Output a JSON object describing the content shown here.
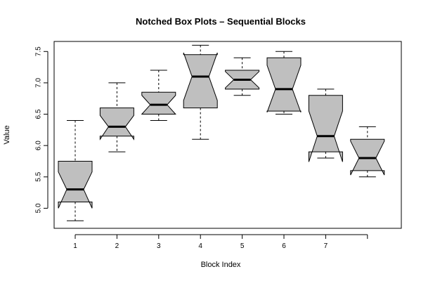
{
  "chart_data": {
    "type": "boxplot",
    "title": "Notched Box Plots – Sequential Blocks",
    "xlabel": "Block Index",
    "ylabel": "Value",
    "ylim": [
      4.68,
      7.66
    ],
    "yticks": [
      5.0,
      5.5,
      6.0,
      6.5,
      7.0,
      7.5
    ],
    "yticklabels": [
      "5.0",
      "5.5",
      "6.0",
      "6.5",
      "7.0",
      "7.5"
    ],
    "categories": [
      "1",
      "2",
      "3",
      "4",
      "5",
      "6",
      "7",
      ""
    ],
    "box_fill": "#bfbfbf",
    "boxes": [
      {
        "min": 4.8,
        "q1": 5.1,
        "median": 5.3,
        "q3": 5.75,
        "max": 6.4,
        "notch_low": 5.0,
        "notch_high": 5.58
      },
      {
        "min": 5.9,
        "q1": 6.15,
        "median": 6.3,
        "q3": 6.6,
        "max": 7.0,
        "notch_low": 6.1,
        "notch_high": 6.48
      },
      {
        "min": 6.4,
        "q1": 6.5,
        "median": 6.65,
        "q3": 6.85,
        "max": 7.2,
        "notch_low": 6.5,
        "notch_high": 6.8
      },
      {
        "min": 6.1,
        "q1": 6.6,
        "median": 7.1,
        "q3": 7.45,
        "max": 7.6,
        "notch_low": 6.72,
        "notch_high": 7.48
      },
      {
        "min": 6.8,
        "q1": 6.9,
        "median": 7.05,
        "q3": 7.2,
        "max": 7.4,
        "notch_low": 6.92,
        "notch_high": 7.18
      },
      {
        "min": 6.5,
        "q1": 6.55,
        "median": 6.9,
        "q3": 7.4,
        "max": 7.5,
        "notch_low": 6.53,
        "notch_high": 7.28
      },
      {
        "min": 5.8,
        "q1": 5.9,
        "median": 6.15,
        "q3": 6.8,
        "max": 6.9,
        "notch_low": 5.74,
        "notch_high": 6.55
      },
      {
        "min": 5.5,
        "q1": 5.6,
        "median": 5.8,
        "q3": 6.1,
        "max": 6.3,
        "notch_low": 5.53,
        "notch_high": 6.07
      }
    ]
  }
}
